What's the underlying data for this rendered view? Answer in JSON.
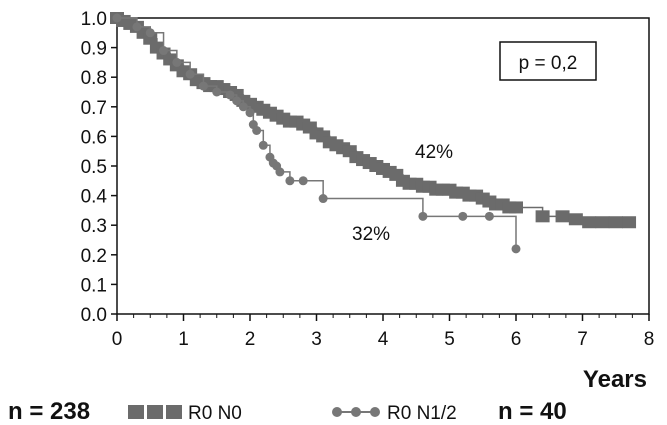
{
  "chart_data": {
    "type": "line",
    "title": "",
    "xlabel": "Years",
    "ylabel": "",
    "xlim": [
      0,
      8
    ],
    "ylim": [
      0,
      1
    ],
    "x_ticks": [
      "0",
      "1",
      "2",
      "3",
      "4",
      "5",
      "6",
      "7",
      "8"
    ],
    "y_ticks": [
      "0.0",
      "0.1",
      "0.2",
      "0.3",
      "0.4",
      "0.5",
      "0.6",
      "0.7",
      "0.8",
      "0.9",
      "1.0"
    ],
    "grid": false,
    "series": [
      {
        "name": "R0 N0",
        "color": "#6b6b6b",
        "marker": "square",
        "n_label": "n = 238",
        "points": [
          [
            0,
            1.0
          ],
          [
            0.1,
            0.99
          ],
          [
            0.2,
            0.98
          ],
          [
            0.3,
            0.97
          ],
          [
            0.4,
            0.95
          ],
          [
            0.5,
            0.93
          ],
          [
            0.6,
            0.9
          ],
          [
            0.7,
            0.88
          ],
          [
            0.8,
            0.86
          ],
          [
            0.9,
            0.84
          ],
          [
            1.0,
            0.82
          ],
          [
            1.1,
            0.81
          ],
          [
            1.2,
            0.79
          ],
          [
            1.3,
            0.78
          ],
          [
            1.4,
            0.77
          ],
          [
            1.5,
            0.77
          ],
          [
            1.6,
            0.76
          ],
          [
            1.7,
            0.75
          ],
          [
            1.8,
            0.74
          ],
          [
            1.9,
            0.72
          ],
          [
            2.0,
            0.71
          ],
          [
            2.1,
            0.7
          ],
          [
            2.2,
            0.69
          ],
          [
            2.3,
            0.68
          ],
          [
            2.4,
            0.67
          ],
          [
            2.5,
            0.66
          ],
          [
            2.6,
            0.65
          ],
          [
            2.7,
            0.65
          ],
          [
            2.8,
            0.64
          ],
          [
            2.9,
            0.63
          ],
          [
            3.0,
            0.61
          ],
          [
            3.1,
            0.6
          ],
          [
            3.2,
            0.58
          ],
          [
            3.3,
            0.57
          ],
          [
            3.4,
            0.56
          ],
          [
            3.5,
            0.55
          ],
          [
            3.6,
            0.53
          ],
          [
            3.7,
            0.52
          ],
          [
            3.8,
            0.51
          ],
          [
            3.9,
            0.5
          ],
          [
            4.0,
            0.49
          ],
          [
            4.1,
            0.48
          ],
          [
            4.2,
            0.47
          ],
          [
            4.3,
            0.45
          ],
          [
            4.4,
            0.44
          ],
          [
            4.5,
            0.44
          ],
          [
            4.6,
            0.43
          ],
          [
            4.7,
            0.43
          ],
          [
            4.8,
            0.42
          ],
          [
            4.9,
            0.42
          ],
          [
            5.0,
            0.42
          ],
          [
            5.1,
            0.41
          ],
          [
            5.2,
            0.41
          ],
          [
            5.3,
            0.4
          ],
          [
            5.4,
            0.4
          ],
          [
            5.5,
            0.39
          ],
          [
            5.6,
            0.38
          ],
          [
            5.7,
            0.37
          ],
          [
            5.8,
            0.37
          ],
          [
            5.9,
            0.36
          ],
          [
            6.0,
            0.36
          ],
          [
            6.4,
            0.33
          ],
          [
            6.7,
            0.33
          ],
          [
            6.9,
            0.32
          ],
          [
            7.1,
            0.31
          ],
          [
            7.3,
            0.31
          ],
          [
            7.5,
            0.31
          ],
          [
            7.7,
            0.31
          ]
        ]
      },
      {
        "name": "R0 N1/2",
        "color": "#777777",
        "marker": "circle",
        "n_label": "n = 40",
        "points": [
          [
            0,
            1.0
          ],
          [
            0.3,
            0.97
          ],
          [
            0.5,
            0.95
          ],
          [
            0.7,
            0.89
          ],
          [
            0.9,
            0.85
          ],
          [
            1.1,
            0.81
          ],
          [
            1.3,
            0.77
          ],
          [
            1.5,
            0.75
          ],
          [
            1.7,
            0.74
          ],
          [
            1.8,
            0.72
          ],
          [
            1.9,
            0.7
          ],
          [
            2.0,
            0.68
          ],
          [
            2.05,
            0.64
          ],
          [
            2.1,
            0.62
          ],
          [
            2.2,
            0.57
          ],
          [
            2.3,
            0.53
          ],
          [
            2.35,
            0.51
          ],
          [
            2.4,
            0.5
          ],
          [
            2.45,
            0.48
          ],
          [
            2.6,
            0.45
          ],
          [
            2.8,
            0.45
          ],
          [
            3.1,
            0.39
          ],
          [
            4.6,
            0.33
          ],
          [
            5.2,
            0.33
          ],
          [
            5.6,
            0.33
          ],
          [
            6.0,
            0.22
          ]
        ]
      }
    ],
    "annotations": [
      {
        "text": "42%",
        "x": 4.7,
        "y": 0.48
      },
      {
        "text": "32%",
        "x": 3.9,
        "y": 0.25
      },
      {
        "text": "p = 0,2",
        "boxed": true,
        "position": "top-right"
      }
    ],
    "legend": {
      "position": "bottom"
    }
  }
}
